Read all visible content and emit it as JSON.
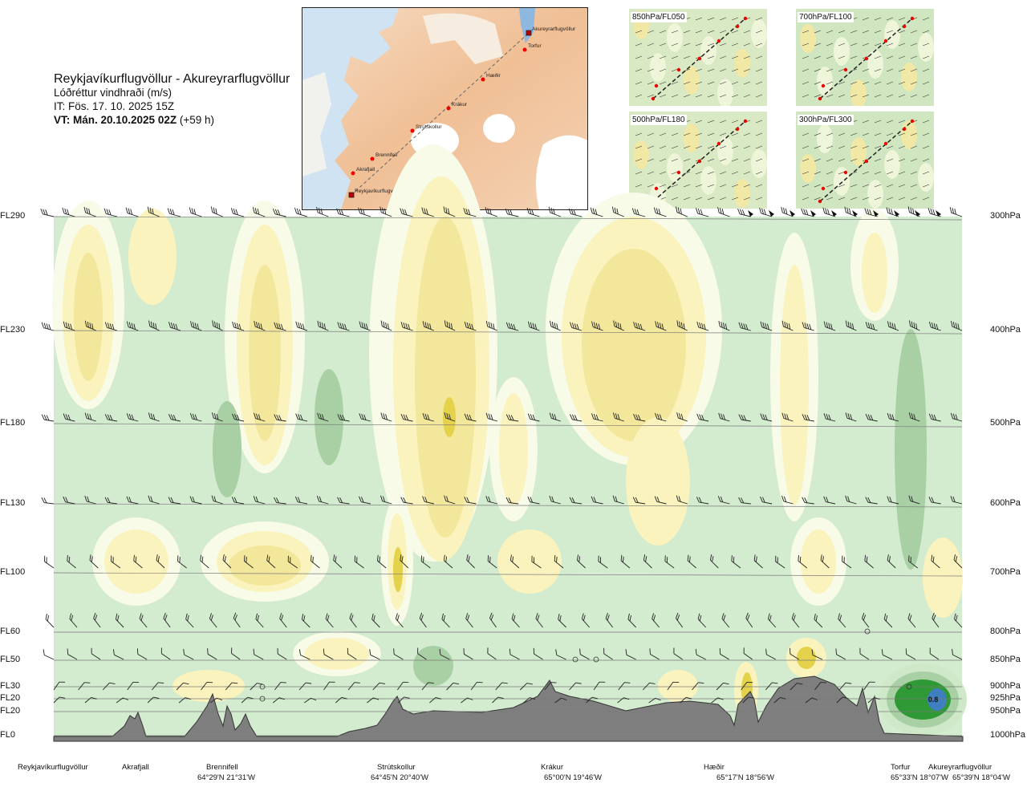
{
  "header": {
    "title": "Reykjavíkurflugvöllur - Akureyrarflugvöllur",
    "subtitle": "Lóðréttur vindhraði (m/s)",
    "issue_time": "IT: Fös. 17. 10. 2025 15Z",
    "valid_time_label": "VT: Mán. 20.10.2025 02Z",
    "valid_time_offset": "(+59 h)"
  },
  "route_map": {
    "waypoints": [
      {
        "name": "Akureyrarflugvöllur",
        "type": "airport"
      },
      {
        "name": "Torfur",
        "type": "point"
      },
      {
        "name": "Hæðir",
        "type": "point"
      },
      {
        "name": "Krákur",
        "type": "point"
      },
      {
        "name": "Strútskollur",
        "type": "point"
      },
      {
        "name": "Brennifell",
        "type": "point"
      },
      {
        "name": "Akrafjall",
        "type": "point"
      },
      {
        "name": "Reykjavíkurflugvöllur",
        "type": "airport"
      }
    ]
  },
  "level_maps": [
    {
      "label": "850hPa/FL050"
    },
    {
      "label": "700hPa/FL100"
    },
    {
      "label": "500hPa/FL180"
    },
    {
      "label": "300hPa/FL300"
    }
  ],
  "chart_data": {
    "type": "vertical cross-section (filled contour)",
    "title": "Lóðréttur vindhraði (m/s)",
    "levels": [
      {
        "fl": "FL290",
        "hpa": "300hPa"
      },
      {
        "fl": "FL230",
        "hpa": "400hPa"
      },
      {
        "fl": "FL180",
        "hpa": "500hPa"
      },
      {
        "fl": "FL130",
        "hpa": "600hPa"
      },
      {
        "fl": "FL100",
        "hpa": "700hPa"
      },
      {
        "fl": "FL60",
        "hpa": "800hPa"
      },
      {
        "fl": "FL50",
        "hpa": "850hPa"
      },
      {
        "fl": "FL30",
        "hpa": "900hPa"
      },
      {
        "fl": "FL20",
        "hpa": "925hPa"
      },
      {
        "fl": "FL20",
        "hpa": "950hPa"
      },
      {
        "fl": "FL0",
        "hpa": "1000hPa"
      }
    ],
    "locations": [
      {
        "name": "Reykjavíkurflugvöllur",
        "coord": ""
      },
      {
        "name": "Akrafjall",
        "coord": ""
      },
      {
        "name": "Brennifell",
        "coord": "64°29'N 21°31'W"
      },
      {
        "name": "Strútskollur",
        "coord": "64°45'N 20°40'W"
      },
      {
        "name": "Krákur",
        "coord": "65°00'N 19°46'W"
      },
      {
        "name": "Hæðir",
        "coord": "65°17'N 18°56'W"
      },
      {
        "name": "Torfur",
        "coord": "65°33'N 18°07'W"
      },
      {
        "name": "Akureyrarflugvöllur",
        "coord": "65°39'N 18°04'W"
      }
    ],
    "annotation": "0.8",
    "colors": {
      "updraft_light": "#cfe9c8",
      "updraft_medium": "#a9d0a4",
      "updraft_strong": "#2f9a35",
      "updraft_max": "#3f7fc0",
      "downdraft_light": "#fbf3bd",
      "downdraft_medium": "#f3e79b",
      "downdraft_strong": "#e3d24a",
      "near_zero": "#f7fbe8",
      "terrain": "#7f7f7f",
      "background": "#d3ebcf"
    }
  }
}
